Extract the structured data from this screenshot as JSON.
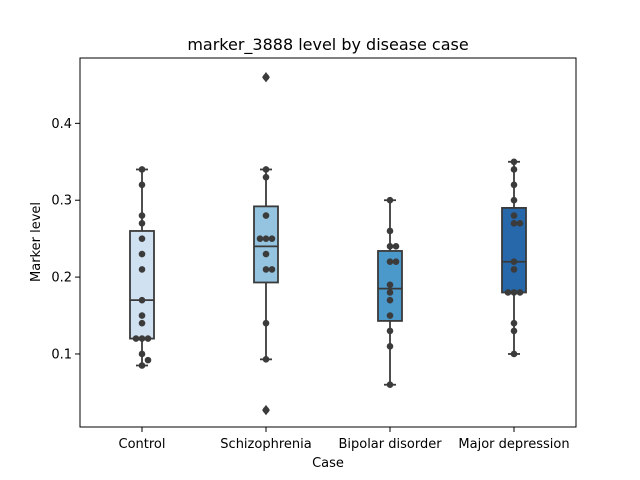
{
  "chart_data": {
    "type": "box",
    "title": "marker_3888 level by disease case",
    "xlabel": "Case",
    "ylabel": "Marker level",
    "ylim": [
      0.005,
      0.485
    ],
    "yticks": [
      0.1,
      0.2,
      0.3,
      0.4
    ],
    "ytick_labels": [
      "0.1",
      "0.2",
      "0.3",
      "0.4"
    ],
    "grid": false,
    "categories": [
      "Control",
      "Schizophrenia",
      "Bipolar disorder",
      "Major depression"
    ],
    "colors": [
      "#d0e1f2",
      "#94c4df",
      "#4b98ca",
      "#2668aa"
    ],
    "boxes": [
      {
        "q1": 0.12,
        "median": 0.17,
        "q3": 0.26,
        "whisker_low": 0.085,
        "whisker_high": 0.34,
        "fliers": []
      },
      {
        "q1": 0.193,
        "median": 0.24,
        "q3": 0.292,
        "whisker_low": 0.093,
        "whisker_high": 0.34,
        "fliers": [
          0.46,
          0.027
        ]
      },
      {
        "q1": 0.143,
        "median": 0.185,
        "q3": 0.234,
        "whisker_low": 0.06,
        "whisker_high": 0.3,
        "fliers": []
      },
      {
        "q1": 0.18,
        "median": 0.22,
        "q3": 0.29,
        "whisker_low": 0.1,
        "whisker_high": 0.35,
        "fliers": []
      }
    ],
    "points": [
      [
        0.34,
        0.32,
        0.28,
        0.27,
        0.25,
        0.23,
        0.21,
        0.17,
        0.15,
        0.14,
        0.12,
        0.12,
        0.12,
        0.1,
        0.092,
        0.085
      ],
      [
        0.46,
        0.34,
        0.33,
        0.28,
        0.25,
        0.25,
        0.25,
        0.23,
        0.21,
        0.21,
        0.14,
        0.093,
        0.027
      ],
      [
        0.3,
        0.26,
        0.24,
        0.24,
        0.22,
        0.22,
        0.19,
        0.18,
        0.17,
        0.15,
        0.13,
        0.11,
        0.06
      ],
      [
        0.35,
        0.34,
        0.32,
        0.3,
        0.28,
        0.27,
        0.27,
        0.22,
        0.21,
        0.18,
        0.18,
        0.18,
        0.14,
        0.13,
        0.1
      ]
    ]
  }
}
